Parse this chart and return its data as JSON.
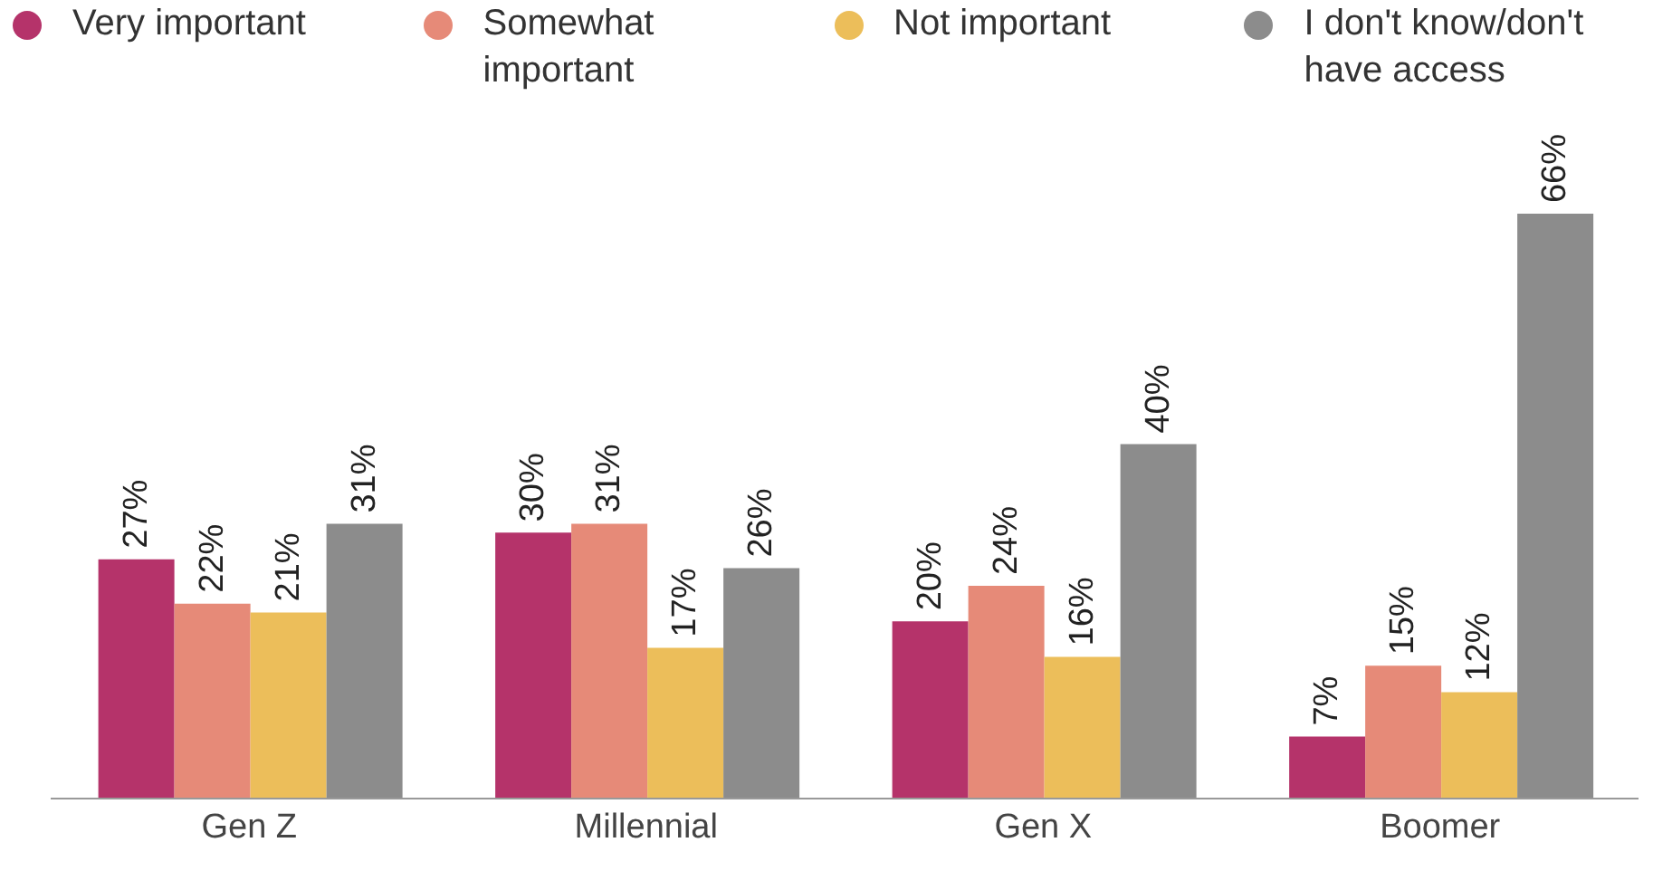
{
  "chart_data": {
    "type": "bar",
    "categories": [
      "Gen Z",
      "Millennial",
      "Gen X",
      "Boomer"
    ],
    "series": [
      {
        "name": "Very important",
        "color": "#b5336a",
        "values": [
          27,
          30,
          20,
          7
        ],
        "value_labels": [
          "27%",
          "30%",
          "20%",
          "7%"
        ]
      },
      {
        "name": "Somewhat important",
        "color": "#e68a78",
        "values": [
          22,
          31,
          24,
          15
        ],
        "value_labels": [
          "22%",
          "31%",
          "24%",
          "15%"
        ]
      },
      {
        "name": "Not important",
        "color": "#ecbe5a",
        "values": [
          21,
          17,
          16,
          12
        ],
        "value_labels": [
          "21%",
          "17%",
          "16%",
          "12%"
        ]
      },
      {
        "name": "I don't know/don't have access",
        "color": "#8c8c8c",
        "values": [
          31,
          26,
          40,
          66
        ],
        "value_labels": [
          "31%",
          "26%",
          "40%",
          "66%"
        ]
      }
    ],
    "legend": "top"
  }
}
